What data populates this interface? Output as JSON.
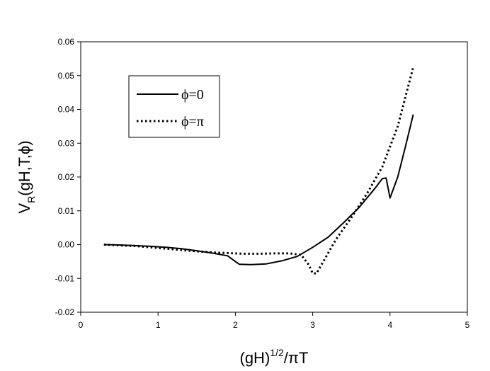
{
  "chart_data": {
    "type": "line",
    "xlim": [
      0,
      5
    ],
    "ylim": [
      -0.02,
      0.06
    ],
    "x_ticks": [
      "0",
      "1",
      "2",
      "3",
      "4",
      "5"
    ],
    "y_ticks": [
      "-0.02",
      "-0.01",
      "0.00",
      "0.01",
      "0.02",
      "0.03",
      "0.04",
      "0.05",
      "0.06"
    ],
    "xlabel": {
      "base": "(gH)",
      "sup": "1/2",
      "tail": "/πT"
    },
    "ylabel": {
      "base": "V",
      "sub": "R",
      "tail": "(gH,T,ϕ)"
    },
    "grid": false,
    "legend_position": "top-left",
    "series": [
      {
        "name": "ϕ=0",
        "style": "solid",
        "color": "#000000",
        "x": [
          0.3,
          0.5,
          0.7,
          0.9,
          1.1,
          1.3,
          1.5,
          1.7,
          1.9,
          2.0,
          2.05,
          2.2,
          2.4,
          2.6,
          2.8,
          3.0,
          3.2,
          3.4,
          3.6,
          3.8,
          3.9,
          3.95,
          4.0,
          4.1,
          4.2,
          4.3
        ],
        "y": [
          0.0,
          -0.0001,
          -0.0003,
          -0.0005,
          -0.0008,
          -0.0012,
          -0.0018,
          -0.0025,
          -0.0033,
          -0.005,
          -0.0058,
          -0.0059,
          -0.0057,
          -0.0048,
          -0.0035,
          -0.0008,
          0.0022,
          0.0065,
          0.011,
          0.0165,
          0.0195,
          0.0197,
          0.0138,
          0.02,
          0.029,
          0.0385
        ]
      },
      {
        "name": "ϕ=π",
        "style": "dotted",
        "color": "#000000",
        "x": [
          0.3,
          0.5,
          0.7,
          0.9,
          1.1,
          1.3,
          1.5,
          1.7,
          1.9,
          2.1,
          2.3,
          2.5,
          2.7,
          2.85,
          2.95,
          3.0,
          3.05,
          3.1,
          3.3,
          3.5,
          3.7,
          3.9,
          4.1,
          4.3
        ],
        "y": [
          0.0,
          -0.0002,
          -0.0004,
          -0.0008,
          -0.0012,
          -0.0016,
          -0.002,
          -0.0023,
          -0.0025,
          -0.0027,
          -0.0027,
          -0.0026,
          -0.0026,
          -0.003,
          -0.006,
          -0.0085,
          -0.0085,
          -0.0065,
          0.0015,
          0.008,
          0.015,
          0.023,
          0.035,
          0.0525
        ]
      }
    ]
  }
}
